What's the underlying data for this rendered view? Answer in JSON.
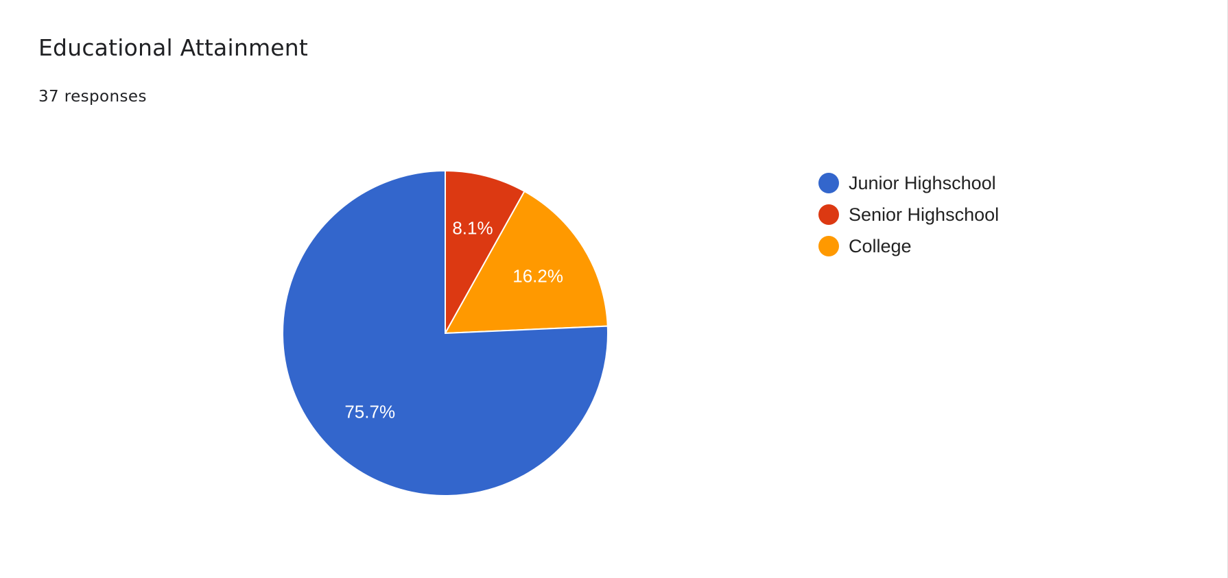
{
  "card": {
    "title": "Educational Attainment",
    "responses": "37 responses"
  },
  "chart_data": {
    "type": "pie",
    "title": "Educational Attainment",
    "subtitle": "37 responses",
    "start_angle_deg": 90,
    "direction": "clockwise",
    "legend_position": "right",
    "slices": [
      {
        "label": "Junior Highschool",
        "value": 75.7,
        "display": "75.7%",
        "color": "#3366cc"
      },
      {
        "label": "Senior Highschool",
        "value": 8.1,
        "display": "8.1%",
        "color": "#dc3912"
      },
      {
        "label": "College",
        "value": 16.2,
        "display": "16.2%",
        "color": "#ff9900"
      }
    ]
  }
}
